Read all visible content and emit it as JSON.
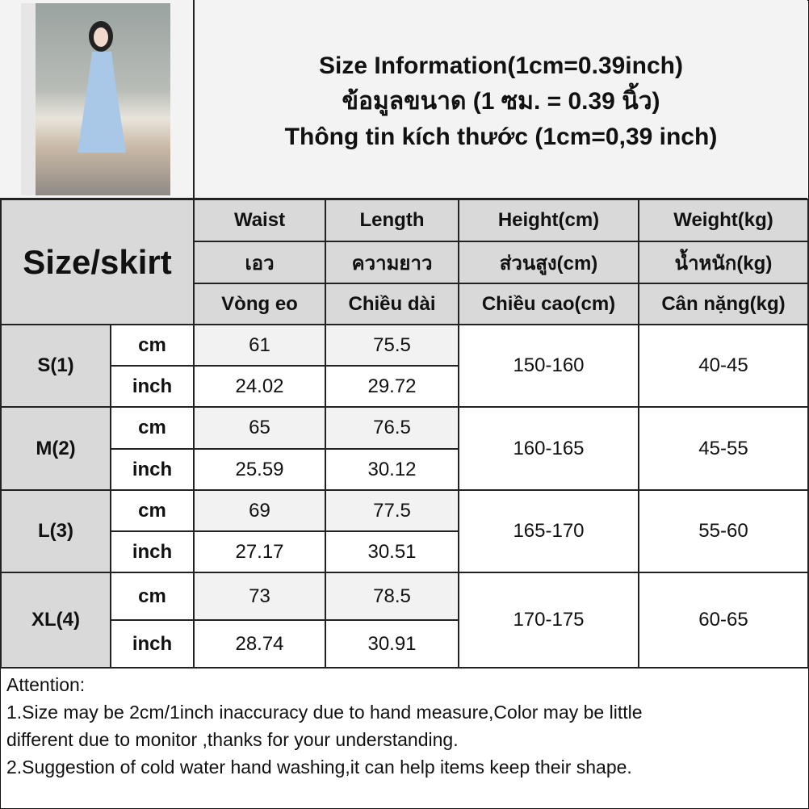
{
  "header": {
    "title_lines": [
      "Size Information(1cm=0.39inch)",
      "ข้อมูลขนาด (1 ซม. = 0.39 นิ้ว)",
      "Thông tin kích thước (1cm=0,39 inch)"
    ]
  },
  "table": {
    "corner_label": "Size/skirt",
    "columns": [
      {
        "en": "Waist",
        "th": "เอว",
        "vi": "Vòng eo"
      },
      {
        "en": "Length",
        "th": "ความยาว",
        "vi": "Chiều dài"
      },
      {
        "en": "Height(cm)",
        "th": "ส่วนสูง(cm)",
        "vi": "Chiều cao(cm)"
      },
      {
        "en": "Weight(kg)",
        "th": "น้ำหนัก(kg)",
        "vi": "Cân nặng(kg)"
      }
    ],
    "unit_labels": {
      "cm": "cm",
      "inch": "inch"
    },
    "rows": [
      {
        "size": "S(1)",
        "waist_cm": "61",
        "length_cm": "75.5",
        "waist_in": "24.02",
        "length_in": "29.72",
        "height": "150-160",
        "weight": "40-45"
      },
      {
        "size": "M(2)",
        "waist_cm": "65",
        "length_cm": "76.5",
        "waist_in": "25.59",
        "length_in": "30.12",
        "height": "160-165",
        "weight": "45-55"
      },
      {
        "size": "L(3)",
        "waist_cm": "69",
        "length_cm": "77.5",
        "waist_in": "27.17",
        "length_in": "30.51",
        "height": "165-170",
        "weight": "55-60"
      },
      {
        "size": "XL(4)",
        "waist_cm": "73",
        "length_cm": "78.5",
        "waist_in": "28.74",
        "length_in": "30.91",
        "height": "170-175",
        "weight": "60-65"
      }
    ]
  },
  "attention": {
    "title": "Attention:",
    "lines": [
      "1.Size may be 2cm/1inch inaccuracy due to hand measure,Color may be little",
      "different due to monitor ,thanks for your understanding.",
      "2.Suggestion of cold water hand washing,it can help items keep their shape."
    ]
  }
}
